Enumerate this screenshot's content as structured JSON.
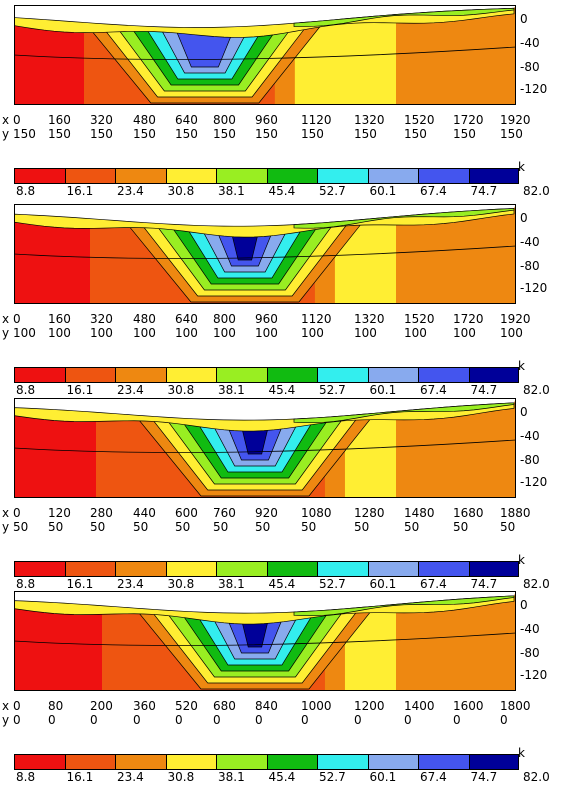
{
  "chart_data": {
    "type": "heatmap",
    "colorscale": {
      "unit": "k",
      "ticks": [
        "8.8",
        "16.1",
        "23.4",
        "30.8",
        "38.1",
        "45.4",
        "52.7",
        "60.1",
        "67.4",
        "74.7",
        "82.0"
      ],
      "colors": [
        "#ee1111",
        "#ee5511",
        "#ee8811",
        "#ffee33",
        "#99ee22",
        "#11bb11",
        "#33eeee",
        "#88aaee",
        "#4455ee",
        "#000099"
      ]
    },
    "depth_ticks": [
      "0",
      "-40",
      "-80",
      "-120"
    ],
    "panels": [
      {
        "x_prefix": "x",
        "y_prefix": "y",
        "x_ticks": [
          "0",
          "160",
          "320",
          "480",
          "640",
          "800",
          "960",
          "1120",
          "1320",
          "1520",
          "1720",
          "1920"
        ],
        "y_ticks": [
          "150",
          "150",
          "150",
          "150",
          "150",
          "150",
          "150",
          "150",
          "150",
          "150",
          "150",
          "150"
        ],
        "anomaly_center_x": 800,
        "anomaly_peak_class": 9
      },
      {
        "x_prefix": "x",
        "y_prefix": "y",
        "x_ticks": [
          "0",
          "160",
          "320",
          "480",
          "640",
          "800",
          "960",
          "1120",
          "1320",
          "1520",
          "1720",
          "1920"
        ],
        "y_ticks": [
          "100",
          "100",
          "100",
          "100",
          "100",
          "100",
          "100",
          "100",
          "100",
          "100",
          "100",
          "100"
        ],
        "anomaly_center_x": 880,
        "anomaly_peak_class": 10
      },
      {
        "x_prefix": "x",
        "y_prefix": "y",
        "x_ticks": [
          "0",
          "120",
          "280",
          "440",
          "600",
          "760",
          "920",
          "1080",
          "1280",
          "1480",
          "1680",
          "1880"
        ],
        "y_ticks": [
          "50",
          "50",
          "50",
          "50",
          "50",
          "50",
          "50",
          "50",
          "50",
          "50",
          "50",
          "50"
        ],
        "anomaly_center_x": 920,
        "anomaly_peak_class": 10
      },
      {
        "x_prefix": "x",
        "y_prefix": "y",
        "x_ticks": [
          "0",
          "80",
          "200",
          "360",
          "520",
          "680",
          "840",
          "1000",
          "1200",
          "1400",
          "1600",
          "1800"
        ],
        "y_ticks": [
          "0",
          "0",
          "0",
          "0",
          "0",
          "0",
          "0",
          "0",
          "0",
          "0",
          "0",
          "0"
        ],
        "anomaly_center_x": 920,
        "anomaly_peak_class": 10
      }
    ]
  }
}
